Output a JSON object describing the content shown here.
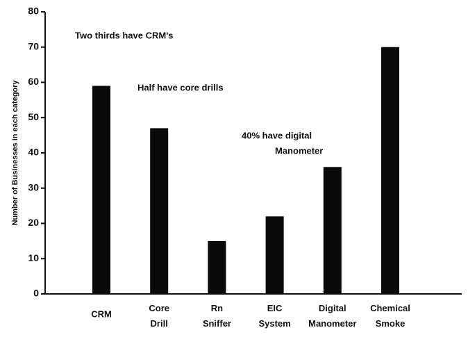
{
  "chart_data": {
    "type": "bar",
    "y_label": "Number of Businesses in each category",
    "categories": [
      "CRM",
      "Core Drill",
      "Rn Sniffer",
      "EIC System",
      "Digital Manometer",
      "Chemical Smoke"
    ],
    "values": [
      59,
      47,
      15,
      22,
      36,
      70
    ],
    "color": "#0a0a0a",
    "ylim": [
      0,
      80
    ],
    "yticks": [
      0,
      10,
      20,
      30,
      40,
      50,
      60,
      70,
      80
    ],
    "grid": false,
    "annotations": [
      "Two thirds have CRM's",
      "Half have core drills",
      "40% have digital",
      "Manometer"
    ]
  }
}
